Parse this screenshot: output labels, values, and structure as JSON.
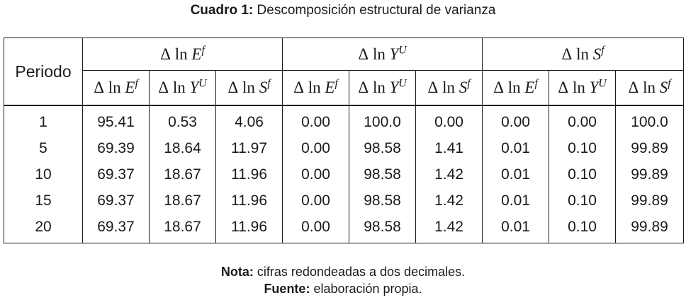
{
  "caption": {
    "label": "Cuadro 1:",
    "text": "Descomposición estructural de varianza"
  },
  "table": {
    "row_header": "Periodo",
    "groups": [
      {
        "delta": "Δ",
        "ln": "ln",
        "var": "E",
        "sup": "f"
      },
      {
        "delta": "Δ",
        "ln": "ln",
        "var": "Y",
        "sup": "U"
      },
      {
        "delta": "Δ",
        "ln": "ln",
        "var": "S",
        "sup": "f"
      }
    ],
    "sub_headers": [
      {
        "delta": "Δ",
        "ln": "ln",
        "var": "E",
        "sup": "f"
      },
      {
        "delta": "Δ",
        "ln": "ln",
        "var": "Y",
        "sup": "U"
      },
      {
        "delta": "Δ",
        "ln": "ln",
        "var": "S",
        "sup": "f"
      }
    ],
    "rows": [
      {
        "periodo": "1",
        "values": [
          "95.41",
          "0.53",
          "4.06",
          "0.00",
          "100.0",
          "0.00",
          "0.00",
          "0.00",
          "100.0"
        ]
      },
      {
        "periodo": "5",
        "values": [
          "69.39",
          "18.64",
          "11.97",
          "0.00",
          "98.58",
          "1.41",
          "0.01",
          "0.10",
          "99.89"
        ]
      },
      {
        "periodo": "10",
        "values": [
          "69.37",
          "18.67",
          "11.96",
          "0.00",
          "98.58",
          "1.42",
          "0.01",
          "0.10",
          "99.89"
        ]
      },
      {
        "periodo": "15",
        "values": [
          "69.37",
          "18.67",
          "11.96",
          "0.00",
          "98.58",
          "1.42",
          "0.01",
          "0.10",
          "99.89"
        ]
      },
      {
        "periodo": "20",
        "values": [
          "69.37",
          "18.67",
          "11.96",
          "0.00",
          "98.58",
          "1.42",
          "0.01",
          "0.10",
          "99.89"
        ]
      }
    ]
  },
  "notes": {
    "nota_label": "Nota:",
    "nota_text": "cifras redondeadas a dos decimales.",
    "fuente_label": "Fuente:",
    "fuente_text": "elaboración propia."
  }
}
